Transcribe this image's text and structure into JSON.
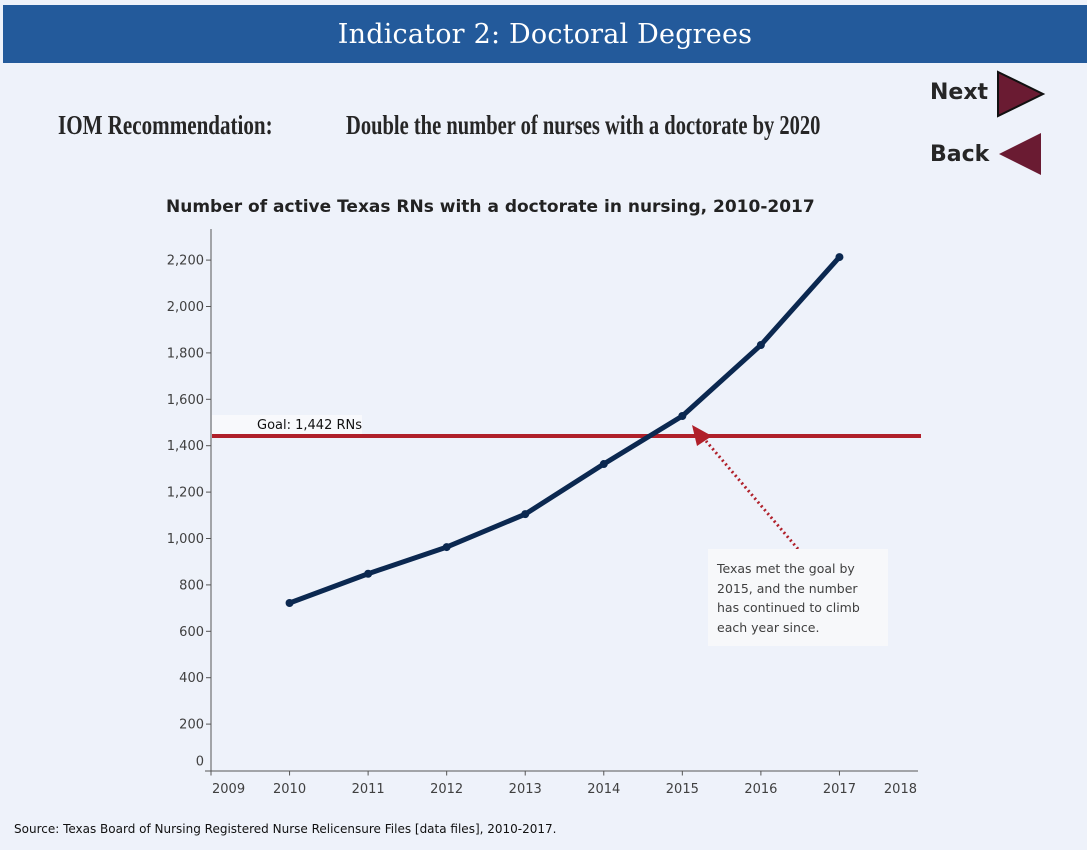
{
  "header": {
    "title": "Indicator 2: Doctoral Degrees"
  },
  "recommendation": {
    "label": "IOM Recommendation:",
    "text": "Double the number of nurses with a doctorate by 2020"
  },
  "nav": {
    "next_label": "Next",
    "back_label": "Back",
    "next_icon": "triangle-right-icon",
    "back_icon": "triangle-left-icon",
    "icon_color": "#6a1b32"
  },
  "annotation": {
    "text": "Texas met the goal by 2015, and the number has continued to climb each year since."
  },
  "source": "Source: Texas Board of Nursing Registered Nurse Relicensure Files [data files], 2010-2017.",
  "chart_data": {
    "type": "line",
    "title": "Number of active Texas RNs with a doctorate in nursing, 2010-2017",
    "xlabel": "",
    "ylabel": "",
    "x": [
      2010,
      2011,
      2012,
      2013,
      2014,
      2015,
      2016,
      2017
    ],
    "series": [
      {
        "name": "Active Texas RNs with a doctorate in nursing",
        "values": [
          722,
          848,
          963,
          1105,
          1321,
          1528,
          1834,
          2213
        ],
        "color": "#0b2850"
      }
    ],
    "xlim": [
      2009,
      2018
    ],
    "ylim": [
      0,
      2300
    ],
    "x_ticks": [
      "2009",
      "2010",
      "2011",
      "2012",
      "2013",
      "2014",
      "2015",
      "2016",
      "2017",
      "2018"
    ],
    "y_ticks": [
      "0",
      "200",
      "400",
      "600",
      "800",
      "1,000",
      "1,200",
      "1,400",
      "1,600",
      "1,800",
      "2,000",
      "2,200"
    ],
    "y_tick_values": [
      0,
      200,
      400,
      600,
      800,
      1000,
      1200,
      1400,
      1600,
      1800,
      2000,
      2200
    ],
    "reference_line": {
      "value": 1442,
      "label": "Goal: 1,442 RNs",
      "color": "#b0202a"
    },
    "grid": false,
    "legend": "none"
  }
}
